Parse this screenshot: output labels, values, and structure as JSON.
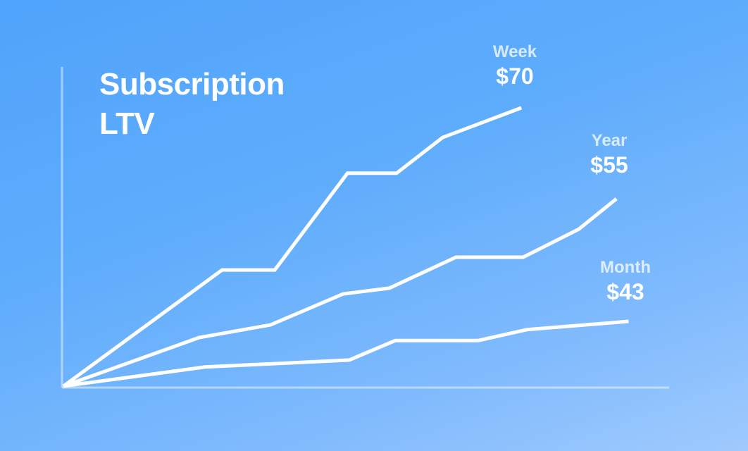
{
  "chart_data": {
    "type": "line",
    "title": "Subscription LTV",
    "xlabel": "",
    "ylabel": "",
    "xlim": [
      0,
      100
    ],
    "ylim": [
      0,
      100
    ],
    "grid": false,
    "line_color": "#ffffff",
    "series": [
      {
        "name": "Week",
        "end_label": "$70",
        "x": [
          0,
          26.2,
          34.9,
          46.9,
          55.0,
          62.6,
          75.6
        ],
        "y": [
          0,
          36.4,
          36.4,
          66.7,
          66.7,
          77.9,
          87.2
        ]
      },
      {
        "name": "Year",
        "end_label": "$55",
        "x": [
          0,
          22.4,
          34.2,
          46.2,
          53.8,
          64.8,
          75.9,
          85.1,
          91.3
        ],
        "y": [
          0,
          15.2,
          19.2,
          28.9,
          30.7,
          40.4,
          40.4,
          49.2,
          58.7
        ]
      },
      {
        "name": "Month",
        "end_label": "$43",
        "x": [
          0,
          23.4,
          47.2,
          54.8,
          68.5,
          76.5,
          93.3
        ],
        "y": [
          0,
          6.0,
          8.2,
          14.3,
          14.3,
          17.7,
          20.3
        ]
      }
    ]
  }
}
